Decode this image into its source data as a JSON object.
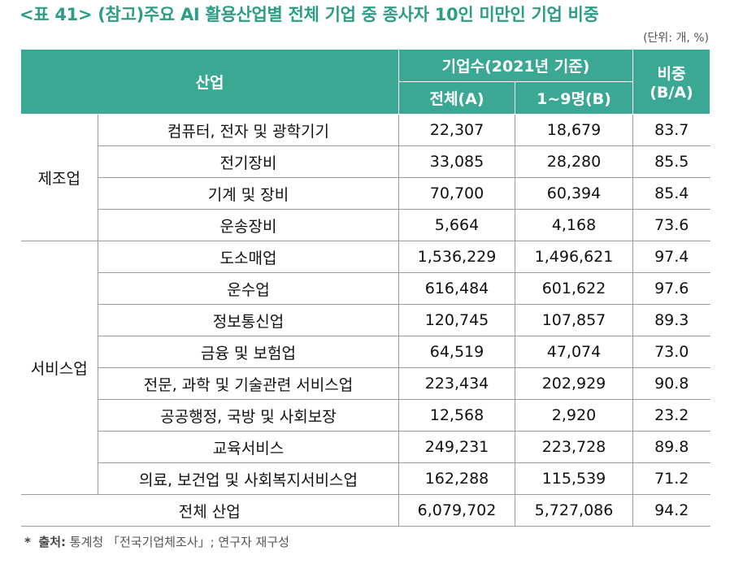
{
  "title": "<표 41> (참고)주요 AI 활용산업별 전체 기업 중 종사자 10인 미만인 기업 비중",
  "unit": "(단위: 개, %)",
  "table": {
    "header": {
      "industry": "산업",
      "firms": "기업수(2021년 기준)",
      "total": "전체(A)",
      "small": "1~9명(B)",
      "ratio": [
        "비중",
        "(B/A)"
      ]
    },
    "groups": [
      {
        "name": "제조업",
        "rows": [
          [
            "컴퓨터, 전자 및 광학기기",
            "22,307",
            "18,679",
            "83.7"
          ],
          [
            "전기장비",
            "33,085",
            "28,280",
            "85.5"
          ],
          [
            "기계 및 장비",
            "70,700",
            "60,394",
            "85.4"
          ],
          [
            "운송장비",
            "5,664",
            "4,168",
            "73.6"
          ]
        ]
      },
      {
        "name": "서비스업",
        "rows": [
          [
            "도소매업",
            "1,536,229",
            "1,496,621",
            "97.4"
          ],
          [
            "운수업",
            "616,484",
            "601,622",
            "97.6"
          ],
          [
            "정보통신업",
            "120,745",
            "107,857",
            "89.3"
          ],
          [
            "금융 및 보험업",
            "64,519",
            "47,074",
            "73.0"
          ],
          [
            "전문, 과학 및 기술관련 서비스업",
            "223,434",
            "202,929",
            "90.8"
          ],
          [
            "공공행정, 국방 및 사회보장",
            "12,568",
            "2,920",
            "23.2"
          ],
          [
            "교육서비스",
            "249,231",
            "223,728",
            "89.8"
          ],
          [
            "의료, 보건업 및 사회복지서비스업",
            "162,288",
            "115,539",
            "71.2"
          ]
        ]
      }
    ],
    "total": [
      "전체 산업",
      "6,079,702",
      "5,727,086",
      "94.2"
    ]
  },
  "footnote": {
    "mark": "*",
    "label": "출처:",
    "text": "통계청 「전국기업체조사」; 연구자 재구성"
  }
}
